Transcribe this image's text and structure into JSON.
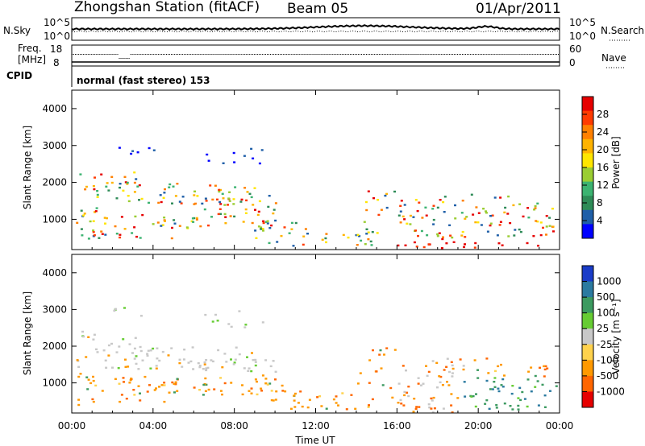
{
  "header": {
    "station": "Zhongshan Station (fitACF)",
    "beam": "Beam 05",
    "date": "01/Apr/2011"
  },
  "top_panels": {
    "nsky": {
      "label": "N.Sky",
      "ticks": [
        "10^5",
        "10^0"
      ],
      "right_label": "N.Search",
      "right_ticks": [
        "10^5",
        "10^0"
      ]
    },
    "freq": {
      "label_line1": "Freq.",
      "label_line2": "[MHz]",
      "ticks": [
        "18",
        "8"
      ],
      "right_label": "Nave",
      "right_ticks": [
        "60",
        "0"
      ]
    },
    "cpid": {
      "label": "CPID",
      "text": "normal (fast stereo) 153"
    }
  },
  "chart_data": [
    {
      "type": "heatmap",
      "title": "",
      "ylabel": "Slant Range [km]",
      "xlabel": "",
      "x_ticks": [
        "00:00",
        "04:00",
        "08:00",
        "12:00",
        "16:00",
        "20:00",
        "00:00"
      ],
      "y_ticks": [
        "4000",
        "3000",
        "2000",
        "1000"
      ],
      "ylim": [
        180,
        4500
      ],
      "xlim_hours": [
        0,
        24
      ],
      "colorbar": {
        "label": "Power [dB]",
        "ticks": [
          "28",
          "24",
          "20",
          "16",
          "12",
          "8",
          "4"
        ],
        "colors": [
          "#e60000",
          "#ff3b00",
          "#ff8000",
          "#ffb300",
          "#ffe600",
          "#9acd32",
          "#3cb371",
          "#2e8b57",
          "#1f5fa8",
          "#0000ff"
        ]
      }
    },
    {
      "type": "heatmap",
      "title": "",
      "ylabel": "Slant Range [km]",
      "xlabel": "Time UT",
      "x_ticks": [
        "00:00",
        "04:00",
        "08:00",
        "12:00",
        "16:00",
        "20:00",
        "00:00"
      ],
      "y_ticks": [
        "4000",
        "3000",
        "2000",
        "1000"
      ],
      "ylim": [
        180,
        4500
      ],
      "xlim_hours": [
        0,
        24
      ],
      "colorbar": {
        "label": "Velocity [m s⁻¹]",
        "ticks": [
          "1000",
          "500",
          "100",
          "25",
          "-25",
          "-100",
          "-500",
          "-1000"
        ],
        "colors": [
          "#1a3cc8",
          "#2b7aa0",
          "#3c9a60",
          "#66cc33",
          "#c8c8c8",
          "#ffd24d",
          "#ff9900",
          "#ff6600",
          "#e60000"
        ]
      }
    }
  ]
}
